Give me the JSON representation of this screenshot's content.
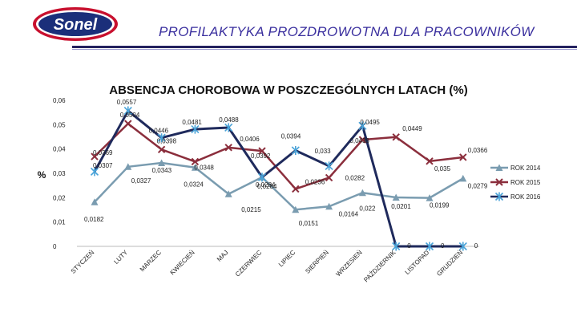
{
  "header": {
    "brand": "Sonel",
    "banner": "PROFILAKTYKA PROZDROWOTNA DLA PRACOWNIKÓW"
  },
  "colors": {
    "brand_red": "#c8102e",
    "brand_blue": "#1b2f7a",
    "banner_text": "#3a2f9e",
    "series_2014": "#7a9cb0",
    "series_2015": "#8b2e3c",
    "series_2016": "#1f2a5c"
  },
  "chart_data": {
    "type": "line",
    "title": "ABSENCJA CHOROBOWA W POSZCZEGÓLNYCH LATACH (%)",
    "ylabel": "%",
    "xlabel": "",
    "ylim": [
      0,
      0.06
    ],
    "yticks": [
      "0",
      "0,01",
      "0,02",
      "0,03",
      "0,04",
      "0,05",
      "0,06"
    ],
    "grid": false,
    "legend_position": "right",
    "categories": [
      "STYCZEŃ",
      "LUTY",
      "MARZEC",
      "KWIECIEŃ",
      "MAJ",
      "CZERWIEC",
      "LIPIEC",
      "SIERPIEŃ",
      "WRZESIEŃ",
      "PAŹDZIERNIK",
      "LISTOPAD",
      "GRUDZIEŃ"
    ],
    "series": [
      {
        "name": "ROK 2014",
        "values": [
          0.0182,
          0.0327,
          0.0343,
          0.0324,
          0.0215,
          0.0284,
          0.0151,
          0.0164,
          0.022,
          0.0201,
          0.0199,
          0.0279
        ],
        "labels": [
          "0,0182",
          "0,0327",
          "0,0343",
          "0,0324",
          "0,0215",
          "0,0284",
          "0,0151",
          "0,0164",
          "0,022",
          "0,0201",
          "0,0199",
          "0,0279"
        ]
      },
      {
        "name": "ROK 2015",
        "values": [
          0.0369,
          0.0504,
          0.0398,
          0.0348,
          0.0406,
          0.0392,
          0.0236,
          0.0282,
          0.0438,
          0.0449,
          0.035,
          0.0366
        ],
        "labels": [
          "0,0369",
          "0,0504",
          "0,0398",
          "0,0348",
          "0,0406",
          "0,0392",
          "0,0236",
          "0,0282",
          "0,0438",
          "0,0449",
          "0,035",
          "0,0366"
        ]
      },
      {
        "name": "ROK 2016",
        "values": [
          0.0307,
          0.0557,
          0.0446,
          0.0481,
          0.0488,
          0.0284,
          0.0394,
          0.033,
          0.0495,
          0,
          0,
          0
        ],
        "labels": [
          "0,0307",
          "0,0557",
          "0,0446",
          "0,0481",
          "0,0488",
          "0,0284",
          "0,0394",
          "0,033",
          "0,0495",
          "0",
          "0",
          "0"
        ]
      }
    ]
  }
}
